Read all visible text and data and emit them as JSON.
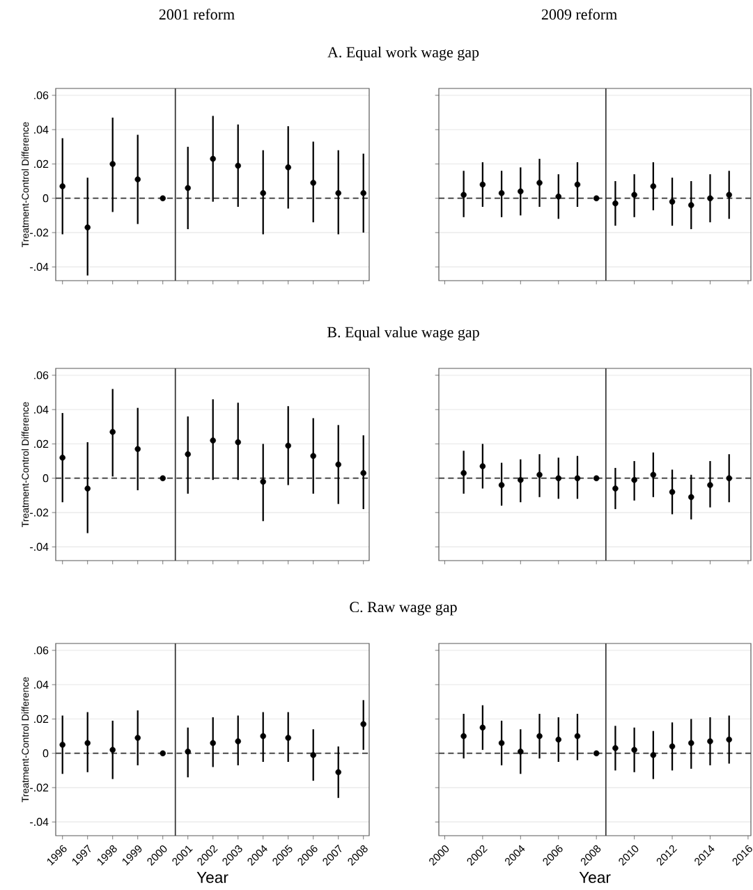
{
  "chart_data": [
    {
      "type": "scatter",
      "title": "A. Equal work wage gap",
      "subtitle": "2001 reform",
      "ylabel": "Treatment-Control Difference",
      "color": "#000000",
      "marker": "circle",
      "grid": "y",
      "tick_labels": "y",
      "x": [
        1996,
        1997,
        1998,
        1999,
        2000,
        2001,
        2002,
        2003,
        2004,
        2005,
        2006,
        2007,
        2008
      ],
      "values": [
        0.007,
        -0.017,
        0.02,
        0.011,
        0,
        0.006,
        0.023,
        0.019,
        0.003,
        0.018,
        0.009,
        0.003,
        0.003
      ],
      "errors": [
        [
          -0.021,
          0.035
        ],
        [
          -0.045,
          0.012
        ],
        [
          -0.008,
          0.047
        ],
        [
          -0.015,
          0.037
        ],
        null,
        [
          -0.018,
          0.03
        ],
        [
          -0.002,
          0.048
        ],
        [
          -0.005,
          0.043
        ],
        [
          -0.021,
          0.028
        ],
        [
          -0.006,
          0.042
        ],
        [
          -0.014,
          0.033
        ],
        [
          -0.021,
          0.028
        ],
        [
          -0.02,
          0.026
        ]
      ],
      "xlim": [
        1995.73,
        2008.23
      ],
      "ylim": [
        -0.048,
        0.064
      ],
      "xticks": [
        1996,
        1997,
        1998,
        1999,
        2000,
        2001,
        2002,
        2003,
        2004,
        2005,
        2006,
        2007,
        2008
      ],
      "yticks": [
        {
          "value": 0.06,
          "label": ".06"
        },
        {
          "value": 0.04,
          "label": ".04"
        },
        {
          "value": 0.02,
          "label": ".02"
        },
        0,
        {
          "value": -0.02,
          "label": "-.02"
        },
        {
          "value": -0.04,
          "label": "-.04"
        }
      ],
      "ref_lines": [
        {
          "axis": "y",
          "value": 0,
          "color": "#333333",
          "line_style": "dashed"
        },
        {
          "axis": "x",
          "value": 2000.5,
          "color": "#333333"
        }
      ]
    },
    {
      "type": "scatter",
      "subtitle": "2009 reform",
      "color": "#000000",
      "marker": "circle",
      "grid": "y",
      "tick_labels": false,
      "x": [
        2001,
        2002,
        2003,
        2004,
        2005,
        2006,
        2007,
        2008,
        2009,
        2010,
        2011,
        2012,
        2013,
        2014,
        2015
      ],
      "values": [
        0.002,
        0.008,
        0.003,
        0.004,
        0.009,
        0.001,
        0.008,
        0,
        -0.003,
        0.002,
        0.007,
        -0.002,
        -0.004,
        0,
        0.002
      ],
      "errors": [
        [
          -0.011,
          0.016
        ],
        [
          -0.005,
          0.021
        ],
        [
          -0.011,
          0.016
        ],
        [
          -0.01,
          0.018
        ],
        [
          -0.005,
          0.023
        ],
        [
          -0.012,
          0.014
        ],
        [
          -0.005,
          0.021
        ],
        null,
        [
          -0.016,
          0.01
        ],
        [
          -0.011,
          0.014
        ],
        [
          -0.007,
          0.021
        ],
        [
          -0.016,
          0.012
        ],
        [
          -0.018,
          0.01
        ],
        [
          -0.014,
          0.014
        ],
        [
          -0.012,
          0.016
        ]
      ],
      "xlim": [
        1999.69,
        2016.15
      ],
      "ylim": [
        -0.048,
        0.064
      ],
      "xticks": [
        2000,
        2002,
        2004,
        2006,
        2008,
        2010,
        2012,
        2014,
        2016
      ],
      "yticks": [
        {
          "value": 0.06,
          "label": null
        },
        {
          "value": 0.04,
          "label": null
        },
        {
          "value": 0.02,
          "label": null
        },
        {
          "value": 0,
          "label": null
        },
        {
          "value": -0.02,
          "label": null
        },
        {
          "value": -0.04,
          "label": null
        }
      ],
      "ref_lines": [
        {
          "axis": "y",
          "value": 0,
          "color": "#333333",
          "line_style": "dashed"
        },
        {
          "axis": "x",
          "value": 2008.5,
          "color": "#333333"
        }
      ]
    },
    {
      "type": "scatter",
      "title": "B. Equal value wage gap",
      "ylabel": "Treatment-Control Difference",
      "color": "#000000",
      "marker": "circle",
      "grid": "y",
      "tick_labels": "y",
      "x": [
        1996,
        1997,
        1998,
        1999,
        2000,
        2001,
        2002,
        2003,
        2004,
        2005,
        2006,
        2007,
        2008
      ],
      "values": [
        0.012,
        -0.006,
        0.027,
        0.017,
        0,
        0.014,
        0.022,
        0.021,
        -0.002,
        0.019,
        0.013,
        0.008,
        0.003
      ],
      "errors": [
        [
          -0.014,
          0.038
        ],
        [
          -0.032,
          0.021
        ],
        [
          0.001,
          0.052
        ],
        [
          -0.007,
          0.041
        ],
        null,
        [
          -0.009,
          0.036
        ],
        [
          -0.001,
          0.046
        ],
        [
          -0.001,
          0.044
        ],
        [
          -0.025,
          0.02
        ],
        [
          -0.004,
          0.042
        ],
        [
          -0.009,
          0.035
        ],
        [
          -0.015,
          0.031
        ],
        [
          -0.018,
          0.025
        ]
      ],
      "xlim": [
        1995.73,
        2008.23
      ],
      "ylim": [
        -0.048,
        0.064
      ],
      "xticks": [
        1996,
        1997,
        1998,
        1999,
        2000,
        2001,
        2002,
        2003,
        2004,
        2005,
        2006,
        2007,
        2008
      ],
      "yticks": [
        {
          "value": 0.06,
          "label": ".06"
        },
        {
          "value": 0.04,
          "label": ".04"
        },
        {
          "value": 0.02,
          "label": ".02"
        },
        0,
        {
          "value": -0.02,
          "label": "-.02"
        },
        {
          "value": -0.04,
          "label": "-.04"
        }
      ],
      "ref_lines": [
        {
          "axis": "y",
          "value": 0,
          "color": "#333333",
          "line_style": "dashed"
        },
        {
          "axis": "x",
          "value": 2000.5,
          "color": "#333333"
        }
      ]
    },
    {
      "type": "scatter",
      "color": "#000000",
      "marker": "circle",
      "grid": "y",
      "tick_labels": false,
      "x": [
        2001,
        2002,
        2003,
        2004,
        2005,
        2006,
        2007,
        2008,
        2009,
        2010,
        2011,
        2012,
        2013,
        2014,
        2015
      ],
      "values": [
        0.003,
        0.007,
        -0.004,
        -0.001,
        0.002,
        0,
        0,
        0,
        -0.006,
        -0.001,
        0.002,
        -0.008,
        -0.011,
        -0.004,
        0
      ],
      "errors": [
        [
          -0.009,
          0.016
        ],
        [
          -0.006,
          0.02
        ],
        [
          -0.016,
          0.009
        ],
        [
          -0.014,
          0.011
        ],
        [
          -0.011,
          0.014
        ],
        [
          -0.012,
          0.012
        ],
        [
          -0.012,
          0.013
        ],
        null,
        [
          -0.018,
          0.006
        ],
        [
          -0.013,
          0.01
        ],
        [
          -0.011,
          0.015
        ],
        [
          -0.021,
          0.005
        ],
        [
          -0.024,
          0.002
        ],
        [
          -0.017,
          0.01
        ],
        [
          -0.014,
          0.014
        ]
      ],
      "xlim": [
        1999.69,
        2016.15
      ],
      "ylim": [
        -0.048,
        0.064
      ],
      "xticks": [
        2000,
        2002,
        2004,
        2006,
        2008,
        2010,
        2012,
        2014,
        2016
      ],
      "yticks": [
        {
          "value": 0.06,
          "label": null
        },
        {
          "value": 0.04,
          "label": null
        },
        {
          "value": 0.02,
          "label": null
        },
        {
          "value": 0,
          "label": null
        },
        {
          "value": -0.02,
          "label": null
        },
        {
          "value": -0.04,
          "label": null
        }
      ],
      "ref_lines": [
        {
          "axis": "y",
          "value": 0,
          "color": "#333333",
          "line_style": "dashed"
        },
        {
          "axis": "x",
          "value": 2008.5,
          "color": "#333333"
        }
      ]
    },
    {
      "type": "scatter",
      "title": "C. Raw wage gap",
      "xlabel": "Year",
      "ylabel": "Treatment-Control Difference",
      "color": "#000000",
      "marker": "circle",
      "grid": "y",
      "x": [
        1996,
        1997,
        1998,
        1999,
        2000,
        2001,
        2002,
        2003,
        2004,
        2005,
        2006,
        2007,
        2008
      ],
      "values": [
        0.005,
        0.006,
        0.002,
        0.009,
        0,
        0.001,
        0.006,
        0.007,
        0.01,
        0.009,
        -0.001,
        -0.011,
        0.017
      ],
      "errors": [
        [
          -0.012,
          0.022
        ],
        [
          -0.011,
          0.024
        ],
        [
          -0.015,
          0.019
        ],
        [
          -0.007,
          0.025
        ],
        null,
        [
          -0.014,
          0.015
        ],
        [
          -0.008,
          0.021
        ],
        [
          -0.007,
          0.022
        ],
        [
          -0.005,
          0.024
        ],
        [
          -0.005,
          0.024
        ],
        [
          -0.016,
          0.014
        ],
        [
          -0.026,
          0.004
        ],
        [
          0.002,
          0.031
        ]
      ],
      "xlim": [
        1995.73,
        2008.23
      ],
      "ylim": [
        -0.048,
        0.064
      ],
      "xticks": [
        1996,
        1997,
        1998,
        1999,
        2000,
        2001,
        2002,
        2003,
        2004,
        2005,
        2006,
        2007,
        2008
      ],
      "yticks": [
        {
          "value": 0.06,
          "label": ".06"
        },
        {
          "value": 0.04,
          "label": ".04"
        },
        {
          "value": 0.02,
          "label": ".02"
        },
        0,
        {
          "value": -0.02,
          "label": "-.02"
        },
        {
          "value": -0.04,
          "label": "-.04"
        }
      ],
      "ref_lines": [
        {
          "axis": "y",
          "value": 0,
          "color": "#333333",
          "line_style": "dashed"
        },
        {
          "axis": "x",
          "value": 2000.5,
          "color": "#333333"
        }
      ]
    },
    {
      "type": "scatter",
      "xlabel": "Year",
      "color": "#000000",
      "marker": "circle",
      "grid": "y",
      "tick_labels": "x",
      "x": [
        2001,
        2002,
        2003,
        2004,
        2005,
        2006,
        2007,
        2008,
        2009,
        2010,
        2011,
        2012,
        2013,
        2014,
        2015
      ],
      "values": [
        0.01,
        0.015,
        0.006,
        0.001,
        0.01,
        0.008,
        0.01,
        0,
        0.003,
        0.002,
        -0.001,
        0.004,
        0.006,
        0.007,
        0.008
      ],
      "errors": [
        [
          -0.003,
          0.023
        ],
        [
          0.002,
          0.028
        ],
        [
          -0.007,
          0.019
        ],
        [
          -0.012,
          0.014
        ],
        [
          -0.003,
          0.023
        ],
        [
          -0.005,
          0.021
        ],
        [
          -0.004,
          0.023
        ],
        null,
        [
          -0.01,
          0.016
        ],
        [
          -0.011,
          0.015
        ],
        [
          -0.015,
          0.013
        ],
        [
          -0.01,
          0.018
        ],
        [
          -0.009,
          0.02
        ],
        [
          -0.007,
          0.021
        ],
        [
          -0.006,
          0.022
        ]
      ],
      "xlim": [
        1999.69,
        2016.15
      ],
      "ylim": [
        -0.048,
        0.064
      ],
      "xticks": [
        2000,
        2002,
        2004,
        2006,
        2008,
        2010,
        2012,
        2014,
        2016
      ],
      "yticks": [
        {
          "value": 0.06,
          "label": null
        },
        {
          "value": 0.04,
          "label": null
        },
        {
          "value": 0.02,
          "label": null
        },
        {
          "value": 0,
          "label": null
        },
        {
          "value": -0.02,
          "label": null
        },
        {
          "value": -0.04,
          "label": null
        }
      ],
      "ref_lines": [
        {
          "axis": "y",
          "value": 0,
          "color": "#333333",
          "line_style": "dashed"
        },
        {
          "axis": "x",
          "value": 2008.5,
          "color": "#333333"
        }
      ]
    }
  ]
}
